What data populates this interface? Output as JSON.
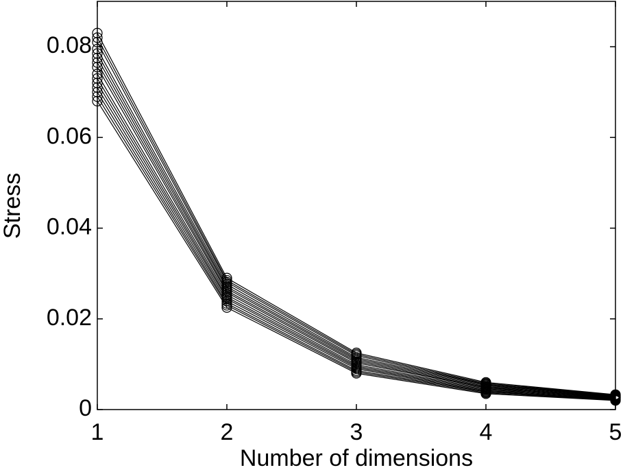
{
  "chart_data": {
    "type": "line",
    "xlabel": "Number of dimensions",
    "ylabel": "Stress",
    "x": [
      1,
      2,
      3,
      4,
      5
    ],
    "xlim": [
      1,
      5
    ],
    "xticks": [
      1,
      2,
      3,
      4,
      5
    ],
    "ylim": [
      0,
      0.09
    ],
    "yticks": [
      0,
      0.02,
      0.04,
      0.06,
      0.08
    ],
    "marker": "circle",
    "grid": false,
    "series": [
      {
        "color": "#000000",
        "values": [
          0.068,
          0.0225,
          0.008,
          0.0035,
          0.002
        ]
      },
      {
        "color": "#000000",
        "values": [
          0.069,
          0.023,
          0.0083,
          0.0037,
          0.0021
        ]
      },
      {
        "color": "#000000",
        "values": [
          0.07,
          0.0234,
          0.0086,
          0.0039,
          0.0022
        ]
      },
      {
        "color": "#000000",
        "values": [
          0.071,
          0.0239,
          0.009,
          0.004,
          0.0023
        ]
      },
      {
        "color": "#000000",
        "values": [
          0.072,
          0.0244,
          0.0093,
          0.0042,
          0.0024
        ]
      },
      {
        "color": "#000000",
        "values": [
          0.073,
          0.0248,
          0.0096,
          0.0044,
          0.0025
        ]
      },
      {
        "color": "#000000",
        "values": [
          0.074,
          0.0253,
          0.0099,
          0.0046,
          0.0026
        ]
      },
      {
        "color": "#000000",
        "values": [
          0.0755,
          0.0258,
          0.0103,
          0.0048,
          0.0027
        ]
      },
      {
        "color": "#000000",
        "values": [
          0.0765,
          0.0262,
          0.0106,
          0.0049,
          0.0027
        ]
      },
      {
        "color": "#000000",
        "values": [
          0.0775,
          0.0267,
          0.0109,
          0.0051,
          0.0028
        ]
      },
      {
        "color": "#000000",
        "values": [
          0.0785,
          0.0271,
          0.0112,
          0.0053,
          0.0029
        ]
      },
      {
        "color": "#000000",
        "values": [
          0.0795,
          0.0276,
          0.0115,
          0.0055,
          0.003
        ]
      },
      {
        "color": "#000000",
        "values": [
          0.081,
          0.0281,
          0.0119,
          0.0056,
          0.0031
        ]
      },
      {
        "color": "#000000",
        "values": [
          0.082,
          0.0285,
          0.0122,
          0.0058,
          0.0032
        ]
      },
      {
        "color": "#000000",
        "values": [
          0.083,
          0.029,
          0.0125,
          0.006,
          0.0033
        ]
      }
    ]
  }
}
